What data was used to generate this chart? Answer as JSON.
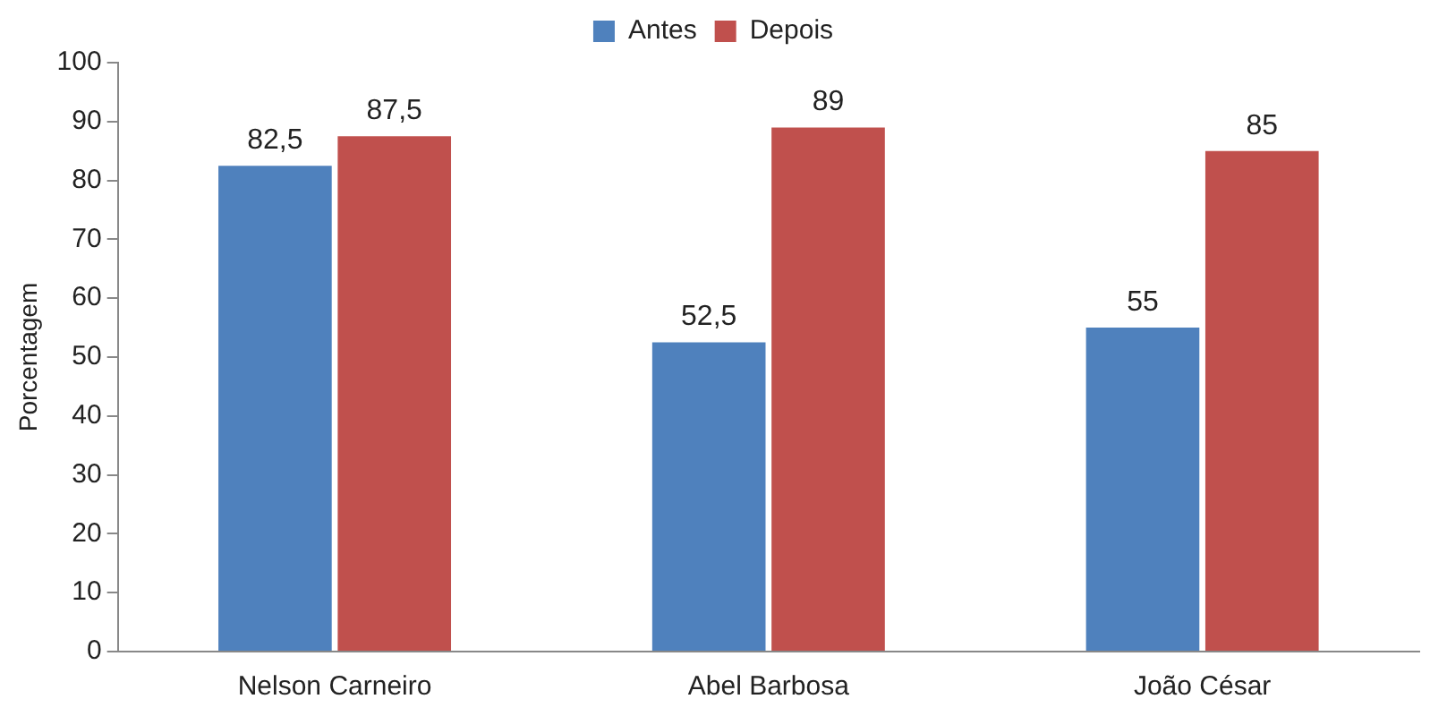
{
  "chart_data": {
    "type": "bar",
    "ylabel": "Porcentagem",
    "categories": [
      "Nelson Carneiro",
      "Abel Barbosa",
      "João César"
    ],
    "series": [
      {
        "name": "Antes",
        "color": "#4f81bd",
        "values": [
          82.5,
          52.5,
          55
        ],
        "value_labels": [
          "82,5",
          "52,5",
          "55"
        ]
      },
      {
        "name": "Depois",
        "color": "#c0504d",
        "values": [
          87.5,
          89,
          85
        ],
        "value_labels": [
          "87,5",
          "89",
          "85"
        ]
      }
    ],
    "ylim": [
      0,
      100
    ],
    "yticks": [
      0,
      10,
      20,
      30,
      40,
      50,
      60,
      70,
      80,
      90,
      100
    ],
    "grid": false,
    "legend": "top"
  }
}
